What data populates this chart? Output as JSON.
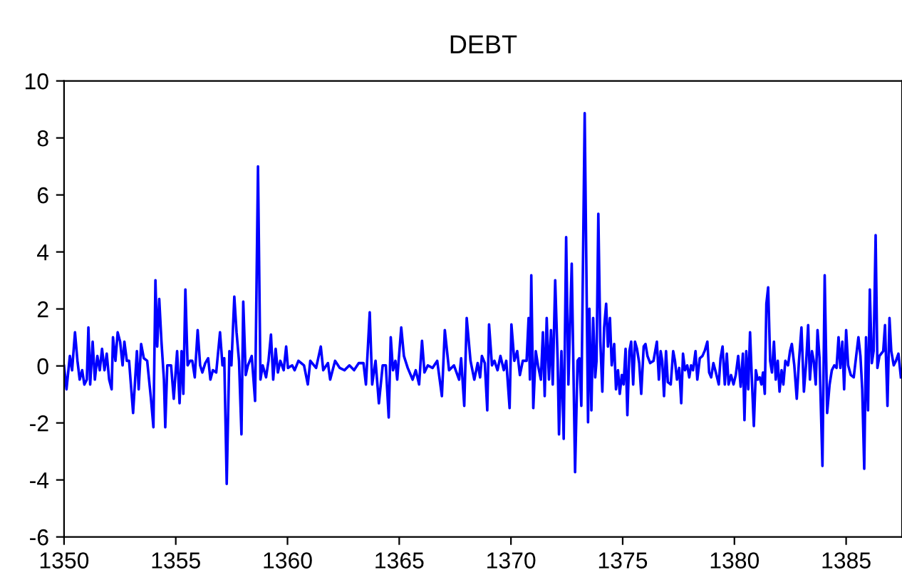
{
  "chart_data": {
    "type": "line",
    "title": "DEBT",
    "xlim": [
      1350,
      1387.5
    ],
    "xticks": [
      1350,
      1355,
      1360,
      1365,
      1370,
      1375,
      1380,
      1385
    ],
    "ylim": [
      -6,
      10
    ],
    "yticks": [
      -6,
      -4,
      -2,
      0,
      2,
      4,
      6,
      8,
      10
    ],
    "grid": false,
    "marker": "none",
    "line_style": "solid",
    "series": [
      {
        "color": "#0000ff",
        "x": [
          1350.0,
          1350.11,
          1350.26,
          1350.36,
          1350.49,
          1350.6,
          1350.7,
          1350.81,
          1350.91,
          1351.02,
          1351.09,
          1351.17,
          1351.28,
          1351.38,
          1351.49,
          1351.6,
          1351.7,
          1351.81,
          1351.91,
          1352.02,
          1352.13,
          1352.19,
          1352.3,
          1352.4,
          1352.51,
          1352.62,
          1352.7,
          1352.81,
          1352.91,
          1353.09,
          1353.26,
          1353.34,
          1353.45,
          1353.57,
          1353.72,
          1353.89,
          1354.0,
          1354.09,
          1354.17,
          1354.26,
          1354.36,
          1354.47,
          1354.53,
          1354.62,
          1354.79,
          1354.91,
          1355.06,
          1355.17,
          1355.26,
          1355.34,
          1355.43,
          1355.53,
          1355.64,
          1355.74,
          1355.85,
          1355.98,
          1356.09,
          1356.19,
          1356.32,
          1356.45,
          1356.55,
          1356.66,
          1356.81,
          1356.98,
          1357.09,
          1357.17,
          1357.28,
          1357.4,
          1357.49,
          1357.62,
          1357.72,
          1357.83,
          1357.94,
          1358.02,
          1358.13,
          1358.23,
          1358.4,
          1358.55,
          1358.68,
          1358.79,
          1358.89,
          1359.04,
          1359.15,
          1359.26,
          1359.36,
          1359.47,
          1359.57,
          1359.68,
          1359.83,
          1359.94,
          1360.02,
          1360.21,
          1360.32,
          1360.49,
          1360.74,
          1360.91,
          1361.02,
          1361.28,
          1361.49,
          1361.6,
          1361.81,
          1361.91,
          1362.13,
          1362.34,
          1362.55,
          1362.77,
          1362.98,
          1363.19,
          1363.4,
          1363.51,
          1363.68,
          1363.79,
          1363.94,
          1364.09,
          1364.26,
          1364.4,
          1364.53,
          1364.62,
          1364.72,
          1364.83,
          1364.91,
          1365.09,
          1365.21,
          1365.38,
          1365.6,
          1365.74,
          1365.89,
          1366.02,
          1366.13,
          1366.28,
          1366.49,
          1366.7,
          1366.91,
          1367.04,
          1367.23,
          1367.45,
          1367.68,
          1367.77,
          1367.91,
          1368.02,
          1368.19,
          1368.36,
          1368.51,
          1368.62,
          1368.7,
          1368.83,
          1368.94,
          1369.02,
          1369.15,
          1369.26,
          1369.4,
          1369.53,
          1369.68,
          1369.79,
          1369.94,
          1370.02,
          1370.15,
          1370.28,
          1370.4,
          1370.53,
          1370.7,
          1370.79,
          1370.85,
          1370.91,
          1371.0,
          1371.11,
          1371.21,
          1371.34,
          1371.43,
          1371.51,
          1371.6,
          1371.7,
          1371.79,
          1371.87,
          1371.98,
          1372.09,
          1372.15,
          1372.26,
          1372.36,
          1372.47,
          1372.57,
          1372.72,
          1372.87,
          1372.98,
          1373.06,
          1373.15,
          1373.3,
          1373.45,
          1373.51,
          1373.6,
          1373.68,
          1373.77,
          1373.83,
          1373.91,
          1374.0,
          1374.09,
          1374.17,
          1374.26,
          1374.34,
          1374.43,
          1374.51,
          1374.62,
          1374.7,
          1374.79,
          1374.87,
          1374.96,
          1375.04,
          1375.13,
          1375.21,
          1375.3,
          1375.38,
          1375.47,
          1375.55,
          1375.64,
          1375.74,
          1375.83,
          1375.94,
          1376.02,
          1376.11,
          1376.23,
          1376.38,
          1376.53,
          1376.62,
          1376.7,
          1376.77,
          1376.85,
          1376.94,
          1377.02,
          1377.15,
          1377.26,
          1377.34,
          1377.43,
          1377.53,
          1377.62,
          1377.7,
          1377.79,
          1377.89,
          1377.98,
          1378.06,
          1378.15,
          1378.26,
          1378.34,
          1378.45,
          1378.57,
          1378.68,
          1378.79,
          1378.87,
          1378.96,
          1379.06,
          1379.17,
          1379.3,
          1379.38,
          1379.47,
          1379.57,
          1379.66,
          1379.74,
          1379.85,
          1379.96,
          1380.06,
          1380.17,
          1380.28,
          1380.38,
          1380.45,
          1380.53,
          1380.62,
          1380.7,
          1380.79,
          1380.87,
          1380.96,
          1381.04,
          1381.13,
          1381.21,
          1381.28,
          1381.36,
          1381.43,
          1381.51,
          1381.6,
          1381.68,
          1381.77,
          1381.85,
          1381.94,
          1382.02,
          1382.11,
          1382.19,
          1382.28,
          1382.4,
          1382.49,
          1382.57,
          1382.68,
          1382.79,
          1382.89,
          1383.0,
          1383.11,
          1383.21,
          1383.3,
          1383.38,
          1383.47,
          1383.55,
          1383.64,
          1383.72,
          1383.81,
          1383.94,
          1384.04,
          1384.15,
          1384.26,
          1384.36,
          1384.47,
          1384.57,
          1384.66,
          1384.74,
          1384.83,
          1384.91,
          1385.0,
          1385.09,
          1385.21,
          1385.34,
          1385.45,
          1385.55,
          1385.64,
          1385.72,
          1385.81,
          1385.89,
          1385.98,
          1386.06,
          1386.15,
          1386.23,
          1386.32,
          1386.4,
          1386.49,
          1386.57,
          1386.66,
          1386.74,
          1386.85,
          1386.94,
          1387.02,
          1387.13,
          1387.23,
          1387.34,
          1387.45
        ],
        "values": [
          0.0,
          -0.82,
          0.35,
          -0.15,
          1.18,
          0.18,
          -0.48,
          -0.15,
          -0.65,
          -0.48,
          1.35,
          -0.65,
          0.85,
          -0.48,
          0.35,
          -0.15,
          0.6,
          -0.15,
          0.43,
          -0.48,
          -0.82,
          1.01,
          0.18,
          1.18,
          0.85,
          0.02,
          0.85,
          0.18,
          0.18,
          -1.65,
          0.52,
          -0.82,
          0.77,
          0.27,
          0.18,
          -1.15,
          -2.15,
          3.01,
          0.68,
          2.35,
          0.85,
          -0.48,
          -2.15,
          0.02,
          0.02,
          -1.15,
          0.52,
          -1.31,
          0.52,
          -0.98,
          2.68,
          0.02,
          0.18,
          0.18,
          -0.4,
          1.26,
          0.02,
          -0.23,
          0.1,
          0.27,
          -0.48,
          -0.15,
          -0.23,
          1.18,
          0.02,
          0.27,
          -4.14,
          0.52,
          0.02,
          2.43,
          1.18,
          0.18,
          -2.4,
          2.26,
          -0.32,
          0.02,
          0.35,
          -1.23,
          7.0,
          -0.48,
          0.02,
          -0.4,
          0.18,
          1.1,
          -0.48,
          0.6,
          -0.23,
          0.18,
          -0.15,
          0.68,
          -0.07,
          0.02,
          -0.15,
          0.18,
          0.02,
          -0.65,
          0.18,
          -0.07,
          0.68,
          -0.15,
          0.1,
          -0.48,
          0.18,
          -0.07,
          -0.15,
          0.02,
          -0.15,
          0.1,
          0.1,
          -0.65,
          1.88,
          -0.65,
          0.18,
          -1.31,
          0.02,
          0.02,
          -1.81,
          1.01,
          -0.15,
          0.18,
          -0.48,
          1.35,
          0.35,
          -0.07,
          -0.48,
          -0.15,
          -0.65,
          0.88,
          -0.23,
          0.02,
          -0.07,
          0.18,
          -1.06,
          1.26,
          -0.15,
          0.02,
          -0.48,
          0.27,
          -1.4,
          1.68,
          0.18,
          -0.48,
          0.1,
          -0.4,
          0.35,
          0.1,
          -1.56,
          1.46,
          0.02,
          0.18,
          -0.15,
          0.35,
          -0.15,
          0.18,
          -1.48,
          1.46,
          0.18,
          0.52,
          -0.32,
          0.18,
          0.18,
          1.68,
          -0.48,
          3.18,
          -1.48,
          0.52,
          0.02,
          -0.48,
          1.18,
          -1.06,
          1.68,
          -0.48,
          1.26,
          -0.65,
          3.01,
          0.18,
          -2.4,
          0.52,
          -2.56,
          4.52,
          -0.65,
          3.59,
          -3.73,
          0.18,
          0.27,
          -1.4,
          8.87,
          -1.98,
          2.01,
          -1.56,
          1.68,
          -0.4,
          0.18,
          5.34,
          0.85,
          -0.9,
          1.35,
          2.18,
          0.68,
          1.68,
          0.02,
          0.77,
          -0.82,
          -0.15,
          -0.98,
          -0.32,
          -0.65,
          0.6,
          -1.73,
          0.52,
          0.85,
          -0.65,
          0.85,
          0.6,
          0.1,
          -0.98,
          0.68,
          0.77,
          0.35,
          0.1,
          0.18,
          0.85,
          -0.48,
          0.52,
          0.18,
          -1.06,
          0.52,
          -0.57,
          -0.65,
          0.52,
          0.18,
          -0.48,
          -0.07,
          -1.31,
          0.43,
          -0.15,
          0.02,
          -0.4,
          0.02,
          -0.15,
          0.52,
          -0.48,
          0.27,
          0.35,
          0.55,
          0.85,
          -0.23,
          -0.4,
          0.1,
          -0.23,
          -0.65,
          0.27,
          0.68,
          -0.65,
          0.43,
          -0.65,
          -0.32,
          -0.65,
          -0.32,
          0.35,
          -0.73,
          0.43,
          -1.9,
          0.52,
          -0.82,
          1.18,
          -0.65,
          -2.11,
          -0.15,
          -0.48,
          -0.4,
          -0.65,
          -0.23,
          -0.98,
          2.18,
          2.76,
          0.18,
          -0.23,
          0.85,
          -0.48,
          0.18,
          -0.9,
          -0.15,
          -0.65,
          0.18,
          0.02,
          0.52,
          0.77,
          0.02,
          -1.15,
          0.18,
          1.35,
          -0.9,
          0.1,
          1.43,
          -0.48,
          0.52,
          0.18,
          -0.65,
          1.26,
          0.27,
          -3.51,
          3.18,
          -1.65,
          -0.65,
          -0.15,
          0.02,
          -0.07,
          1.01,
          -0.07,
          0.85,
          -0.82,
          1.26,
          0.02,
          -0.32,
          -0.4,
          0.35,
          1.01,
          0.35,
          -0.82,
          -3.61,
          1.01,
          -1.56,
          2.68,
          0.1,
          0.52,
          4.59,
          -0.07,
          0.35,
          0.43,
          0.52,
          1.43,
          -1.4,
          1.68,
          0.52,
          0.02,
          0.18,
          0.43,
          -0.4
        ]
      }
    ]
  }
}
